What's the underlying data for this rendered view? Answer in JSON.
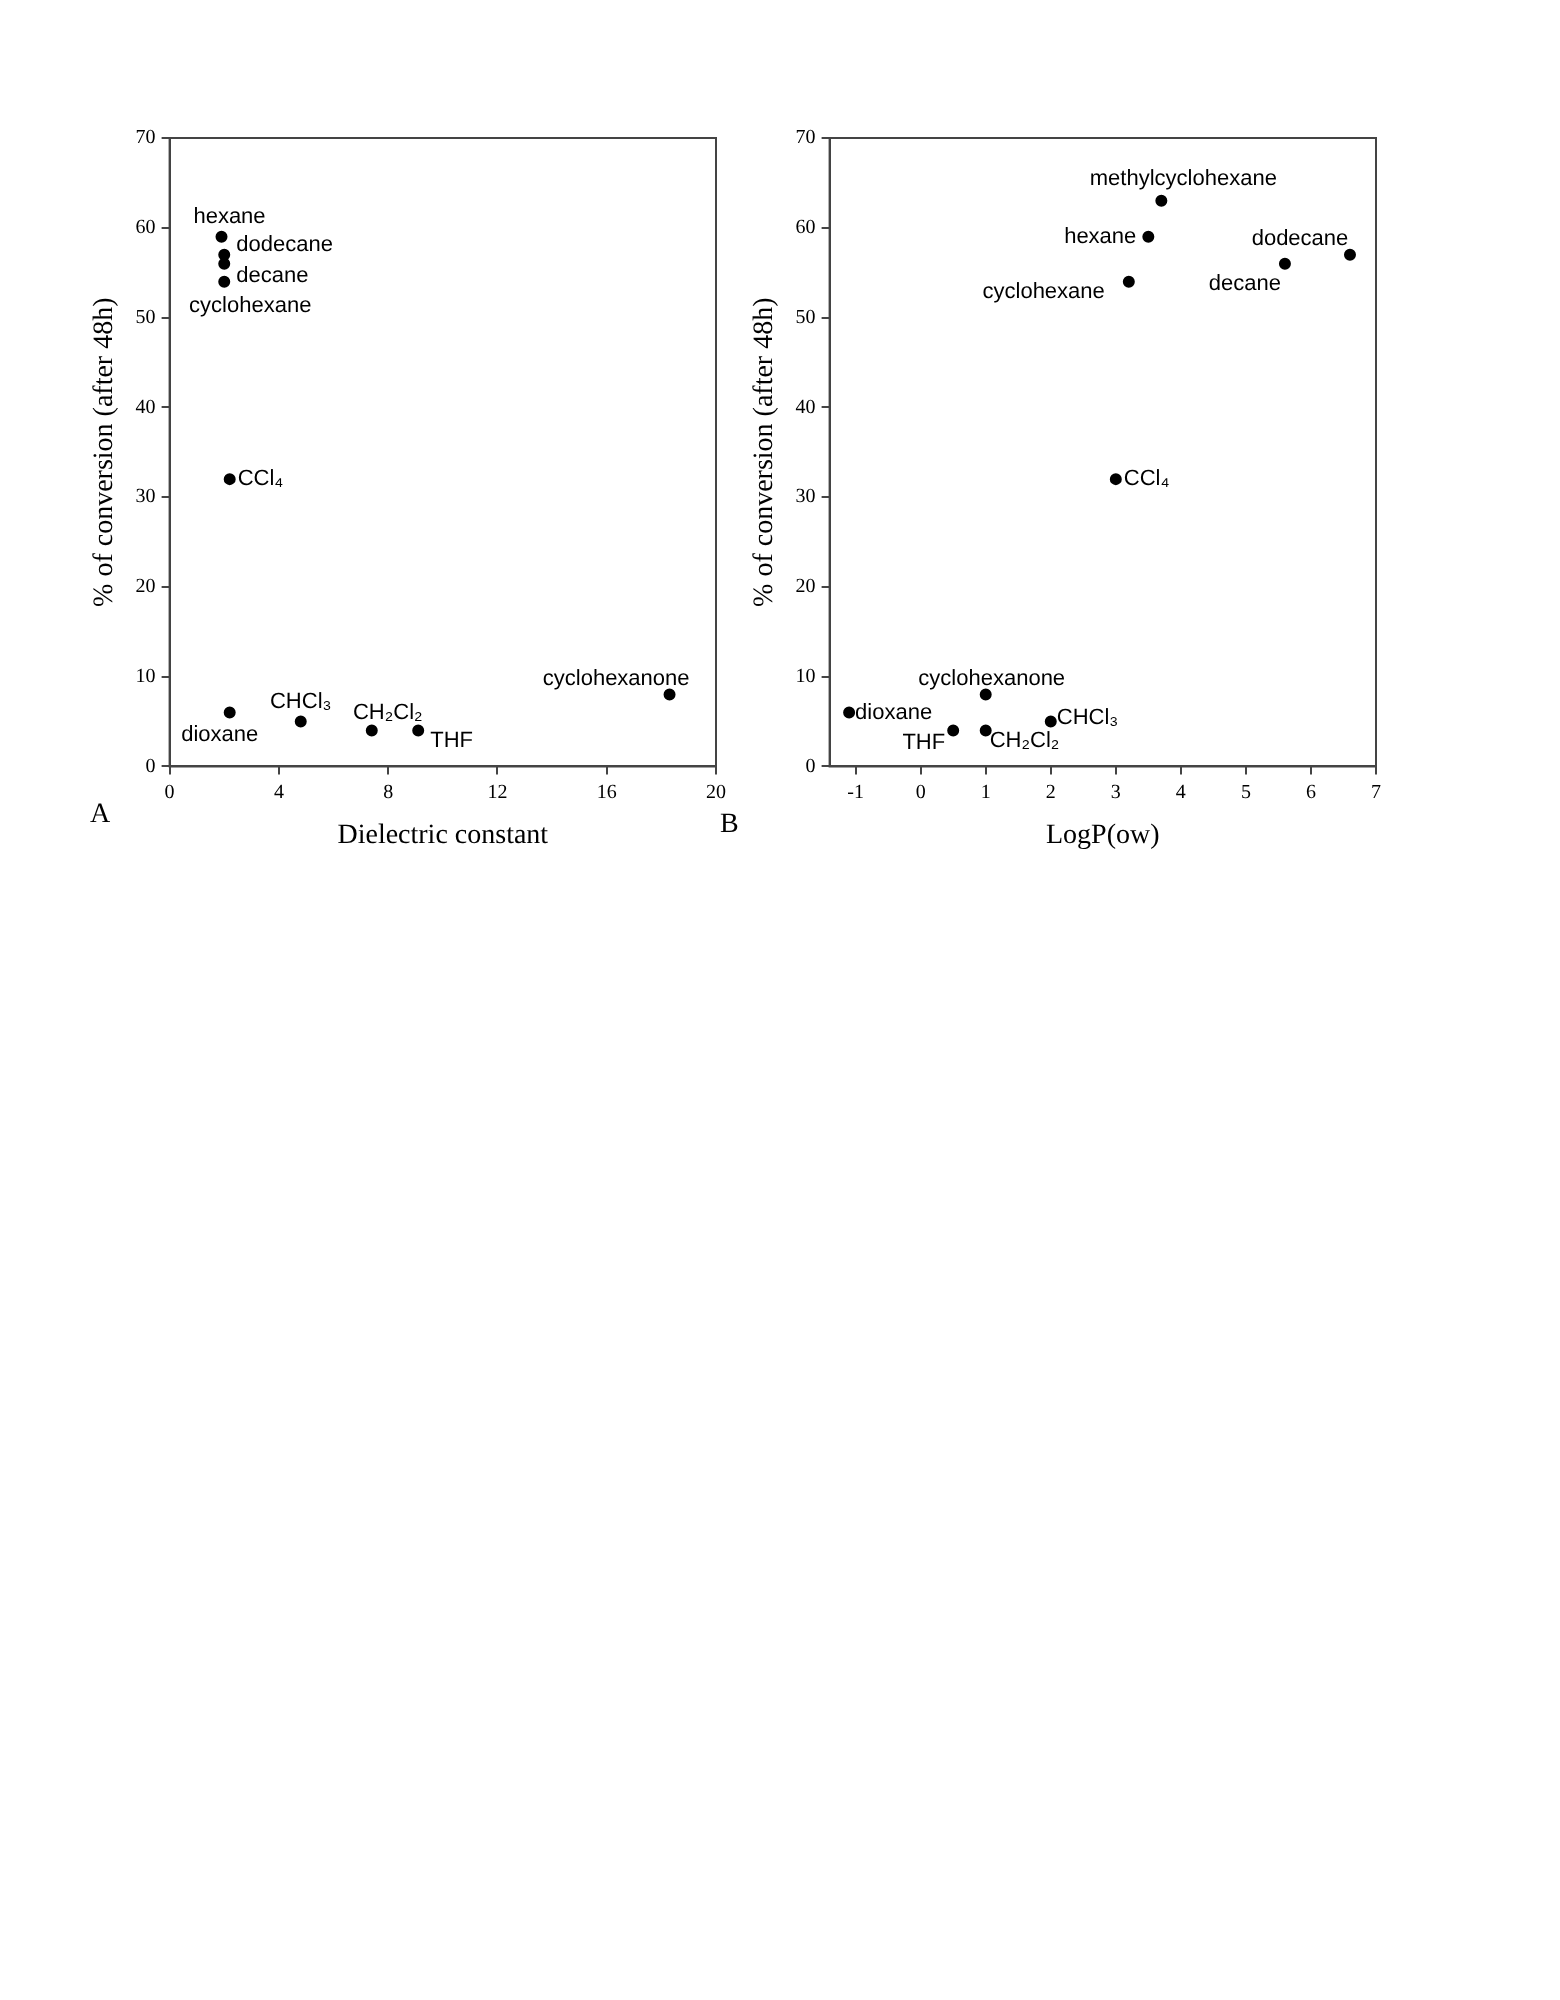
{
  "chart_data": [
    {
      "type": "scatter",
      "xlabel": "Dielectric constant",
      "ylabel": "% of conversion (after 48h)",
      "xlim": [
        0,
        20
      ],
      "xticks": [
        0,
        4,
        8,
        12,
        16,
        20
      ],
      "ylim": [
        0,
        70
      ],
      "yticks": [
        0,
        10,
        20,
        30,
        40,
        50,
        60,
        70
      ],
      "marker": "circle",
      "legend": false,
      "annotations": [
        "A"
      ],
      "series": [
        {
          "color": "#000000",
          "x": [
            1.9,
            2.0,
            2.0,
            2.0,
            2.2,
            2.2,
            4.8,
            7.4,
            9.1,
            18.3
          ],
          "values": [
            59,
            57,
            56,
            54,
            32,
            6,
            5,
            4,
            4,
            8
          ],
          "value_labels": [
            "hexane",
            "dodecane",
            "decane",
            "cyclohexane",
            "CCl₄",
            "dioxane",
            "CHCl₃",
            "CH₂Cl₂",
            "THF",
            "cyclohexanone"
          ]
        }
      ]
    },
    {
      "type": "scatter",
      "xlabel": "LogP(ow)",
      "ylabel": "% of conversion (after 48h)",
      "xlim": [
        -1.4,
        7
      ],
      "xticks": [
        -1,
        0,
        1,
        2,
        3,
        4,
        5,
        6,
        7
      ],
      "ylim": [
        0,
        70
      ],
      "yticks": [
        0,
        10,
        20,
        30,
        40,
        50,
        60,
        70
      ],
      "marker": "circle",
      "legend": false,
      "annotations": [
        "B"
      ],
      "series": [
        {
          "color": "#000000",
          "x": [
            3.7,
            3.5,
            3.2,
            6.6,
            5.6,
            3.0,
            1.0,
            -1.1,
            0.5,
            1.0,
            2.0
          ],
          "values": [
            63,
            59,
            54,
            57,
            56,
            32,
            8,
            6,
            4,
            4,
            5
          ],
          "value_labels": [
            "methylcyclohexane",
            "hexane",
            "cyclohexane",
            "dodecane",
            "decane",
            "CCl₄",
            "cyclohexanone",
            "dioxane",
            "THF",
            "CH₂Cl₂",
            "CHCl₃"
          ]
        }
      ]
    }
  ]
}
